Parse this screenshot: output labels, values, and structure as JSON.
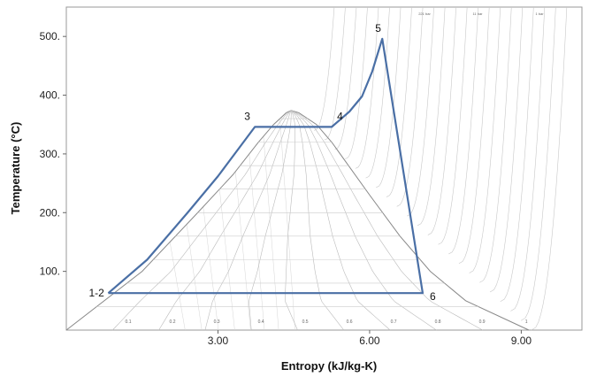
{
  "chart_data": {
    "type": "line",
    "title": "",
    "xlabel": "Entropy (kJ/kg-K)",
    "ylabel": "Temperature (°C)",
    "xlim": [
      0.0,
      10.2
    ],
    "ylim": [
      0,
      550
    ],
    "x_ticks": [
      {
        "value": 3.0,
        "label": "3.00"
      },
      {
        "value": 6.0,
        "label": "6.00"
      },
      {
        "value": 9.0,
        "label": "9.00"
      }
    ],
    "y_ticks": [
      {
        "value": 100,
        "label": "100."
      },
      {
        "value": 200,
        "label": "200."
      },
      {
        "value": 300,
        "label": "300."
      },
      {
        "value": 400,
        "label": "400."
      },
      {
        "value": 500,
        "label": "500."
      }
    ],
    "grid": false,
    "saturation_dome": {
      "liquid_line": [
        [
          0.0,
          0
        ],
        [
          1.5,
          100
        ],
        [
          2.6,
          200
        ],
        [
          3.3,
          265
        ],
        [
          3.8,
          320
        ],
        [
          4.1,
          350
        ],
        [
          4.35,
          370
        ],
        [
          4.45,
          374
        ]
      ],
      "vapor_line": [
        [
          4.45,
          374
        ],
        [
          4.6,
          370
        ],
        [
          4.95,
          350
        ],
        [
          5.25,
          320
        ],
        [
          5.5,
          290
        ],
        [
          6.0,
          230
        ],
        [
          6.6,
          160
        ],
        [
          7.2,
          100
        ],
        [
          7.9,
          50
        ],
        [
          9.15,
          0
        ]
      ]
    },
    "quality_labels": [
      "0.1",
      "0.2",
      "0.3",
      "0.4",
      "0.5",
      "0.6",
      "0.7",
      "0.8",
      "0.9",
      "1"
    ],
    "isobar_labels": [
      "221 bar",
      "11 bar",
      "1 bar"
    ],
    "cycle": {
      "name": "",
      "points": [
        {
          "label": "1-2",
          "s": 0.83,
          "T": 63
        },
        {
          "label": "3",
          "s": 3.73,
          "T": 346
        },
        {
          "label": "4",
          "s": 5.25,
          "T": 346
        },
        {
          "label": "5",
          "s": 6.25,
          "T": 496
        },
        {
          "label": "6",
          "s": 7.05,
          "T": 63
        }
      ],
      "path": [
        [
          0.83,
          63
        ],
        [
          1.6,
          120
        ],
        [
          2.4,
          200
        ],
        [
          3.0,
          262
        ],
        [
          3.73,
          346
        ],
        [
          5.25,
          346
        ],
        [
          5.6,
          372
        ],
        [
          5.85,
          398
        ],
        [
          6.05,
          440
        ],
        [
          6.25,
          496
        ],
        [
          7.05,
          63
        ],
        [
          0.83,
          63
        ]
      ],
      "color": "#4a6fa5"
    }
  }
}
